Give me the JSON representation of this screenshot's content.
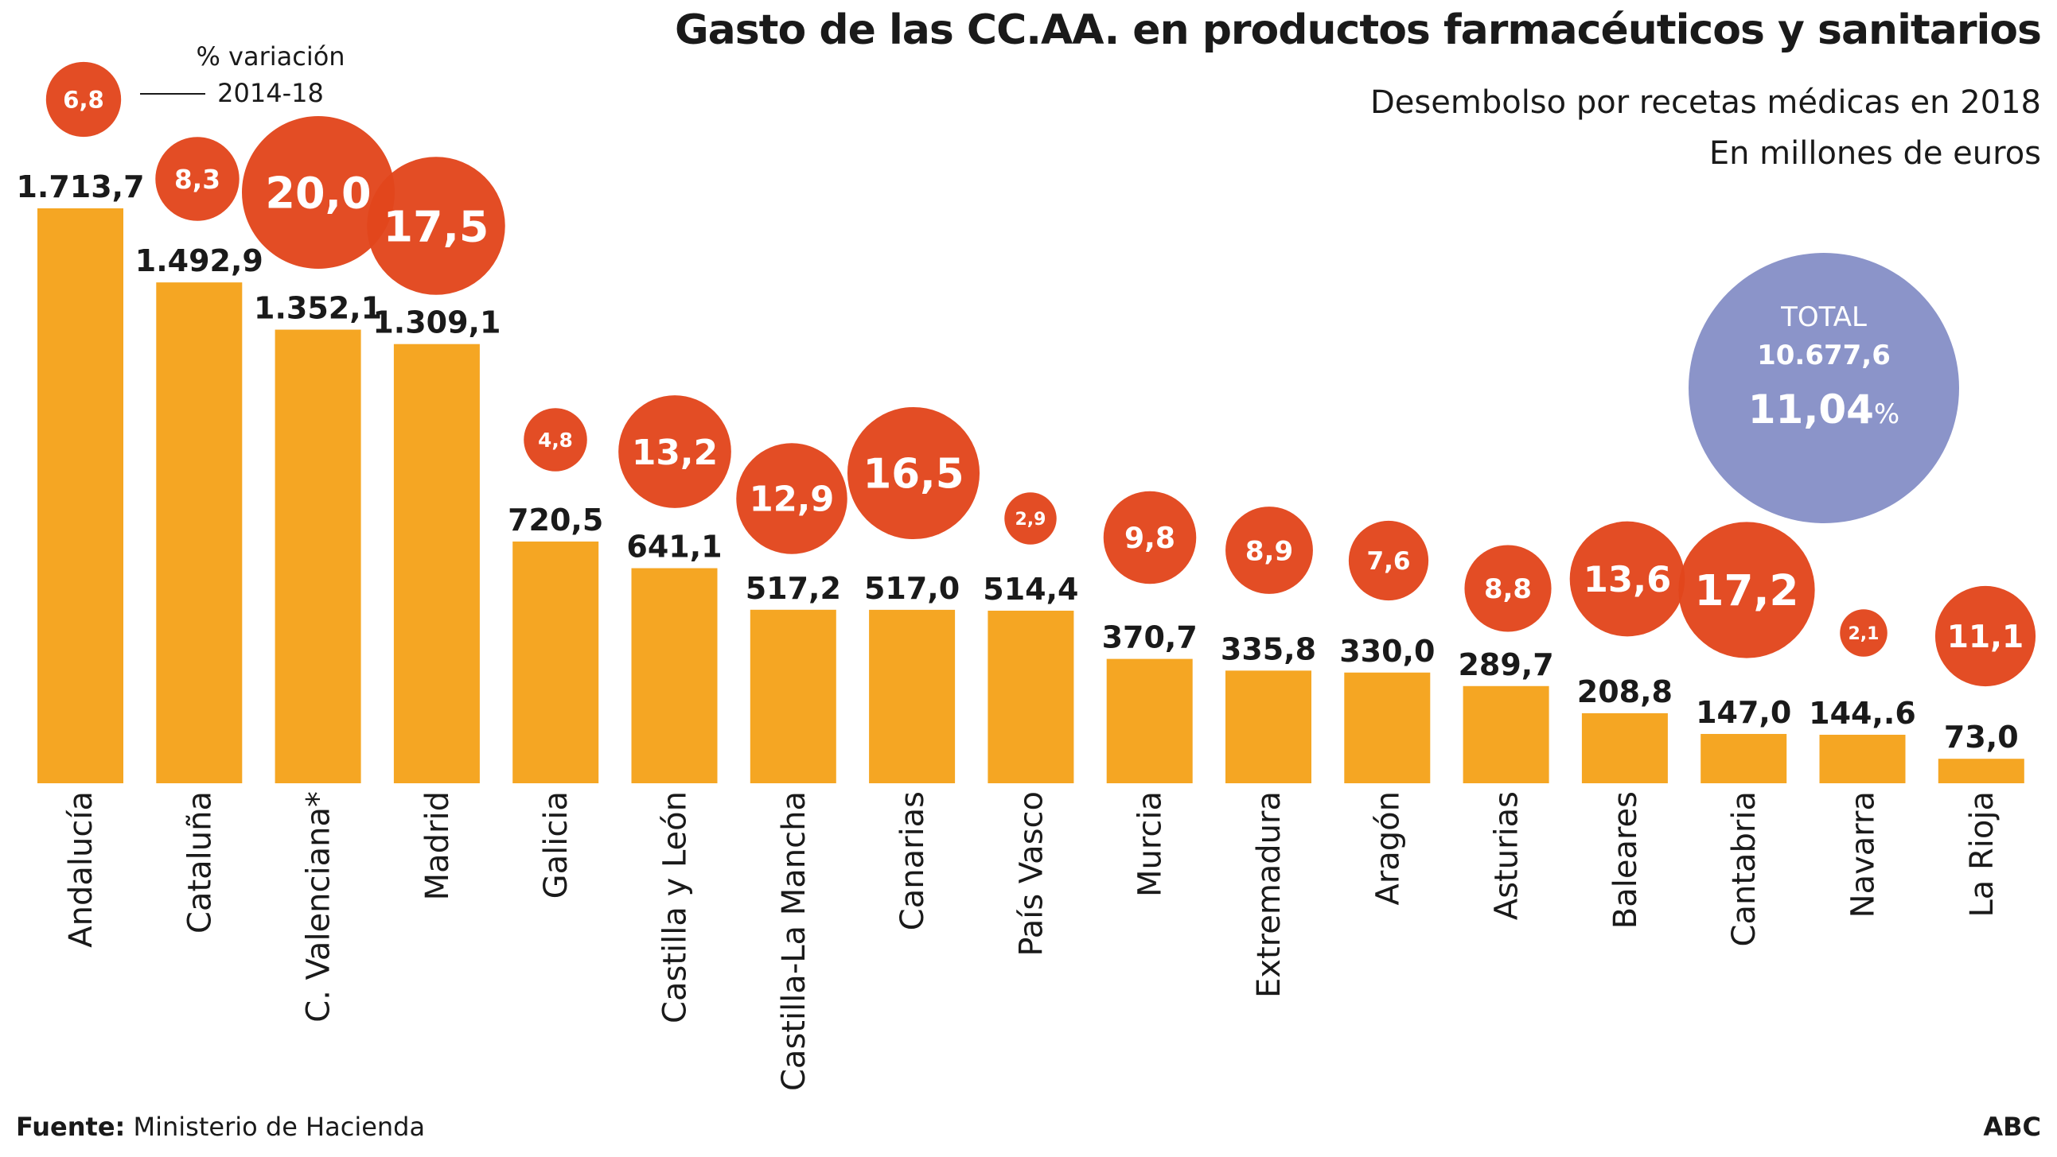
{
  "header": {
    "title": "Gasto de las CC.AA. en productos farmacéuticos y sanitarios",
    "subtitle_line1": "Desembolso por recetas médicas en 2018",
    "subtitle_line2": "En millones de euros"
  },
  "legend": {
    "sample_value": "6,8",
    "label_line1": "% variación",
    "label_line2": "2014-18"
  },
  "total": {
    "label": "TOTAL",
    "value": "10.677,6",
    "variation": "11,04",
    "unit": "%"
  },
  "footer": {
    "source_label": "Fuente:",
    "source": "Ministerio de Hacienda",
    "credit": "ABC"
  },
  "colors": {
    "bar": "#F5A623",
    "bubble": "#E2461C",
    "total_bubble": "#8B94C9",
    "text": "#1a1a1a",
    "bubble_text": "#ffffff"
  },
  "chart_data": {
    "type": "bar",
    "title": "Gasto de las CC.AA. en productos farmacéuticos y sanitarios",
    "categories": [
      "Andalucía",
      "Cataluña",
      "C. Valenciana*",
      "Madrid",
      "Galicia",
      "Castilla y León",
      "Castilla-La Mancha",
      "Canarias",
      "País Vasco",
      "Murcia",
      "Extremadura",
      "Aragón",
      "Asturias",
      "Baleares",
      "Cantabria",
      "Navarra",
      "La Rioja"
    ],
    "series": [
      {
        "values": [
          1713.7,
          1492.9,
          1352.1,
          1309.1,
          720.5,
          641.1,
          517.2,
          517.0,
          514.4,
          370.7,
          335.8,
          330.0,
          289.7,
          208.8,
          147.0,
          144.6,
          73.0
        ],
        "labels": [
          "1.713,7",
          "1.492,9",
          "1.352,1",
          "1.309,1",
          "720,5",
          "641,1",
          "517,2",
          "517,0",
          "514,4",
          "370,7",
          "335,8",
          "330,0",
          "289,7",
          "208,8",
          "147,0",
          "144,.6",
          "73,0"
        ]
      },
      {
        "name": "% variación 2014-18",
        "values": [
          6.8,
          8.3,
          20.0,
          17.5,
          4.8,
          13.2,
          12.9,
          16.5,
          2.9,
          9.8,
          8.9,
          7.6,
          8.8,
          13.6,
          17.2,
          2.1,
          11.1
        ],
        "labels": [
          "6,8",
          "8,3",
          "20,0",
          "17,5",
          "4,8",
          "13,2",
          "12,9",
          "16,5",
          "2,9",
          "9,8",
          "8,9",
          "7,6",
          "8,8",
          "13,6",
          "17,2",
          "2,1",
          "11,1"
        ]
      }
    ],
    "ylim": [
      0,
      1713.7
    ],
    "grid": false,
    "legend_position": "top-left"
  }
}
